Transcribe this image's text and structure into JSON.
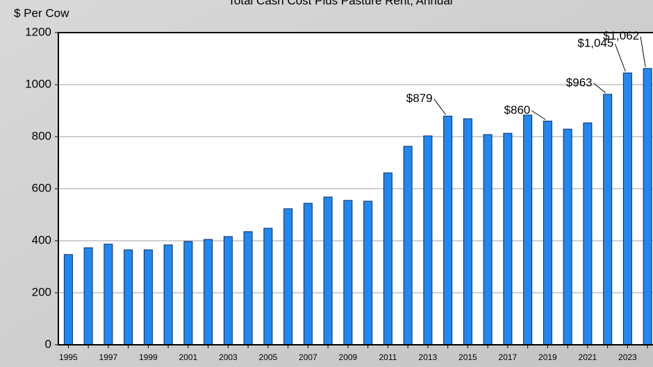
{
  "chart_data": {
    "type": "bar",
    "title": "Total Cash Cost Plus Pasture Rent, Annual",
    "y_label": "$ Per Cow",
    "categories": [
      "1995",
      null,
      "1997",
      null,
      "1999",
      null,
      "2001",
      null,
      "2003",
      null,
      "2005",
      null,
      "2007",
      null,
      "2009",
      null,
      "2011",
      null,
      "2013",
      null,
      "2015",
      null,
      "2017",
      null,
      "2019",
      null,
      "2021",
      null,
      "2023",
      null
    ],
    "values": [
      347,
      373,
      387,
      365,
      365,
      384,
      397,
      405,
      416,
      435,
      448,
      523,
      544,
      568,
      555,
      552,
      661,
      763,
      803,
      879,
      869,
      808,
      813,
      883,
      860,
      829,
      853,
      963,
      1045,
      1062
    ],
    "value_labels": [
      null,
      null,
      null,
      null,
      null,
      null,
      null,
      null,
      null,
      null,
      null,
      null,
      null,
      null,
      null,
      null,
      null,
      null,
      null,
      "$879",
      null,
      null,
      null,
      null,
      "$860",
      null,
      null,
      "$963",
      "$1,045",
      "$1,062"
    ],
    "color": "#2288f0",
    "ylim": [
      0,
      1200
    ],
    "yticks": [
      0,
      200,
      400,
      600,
      800,
      1000,
      1200
    ],
    "grid": true
  }
}
